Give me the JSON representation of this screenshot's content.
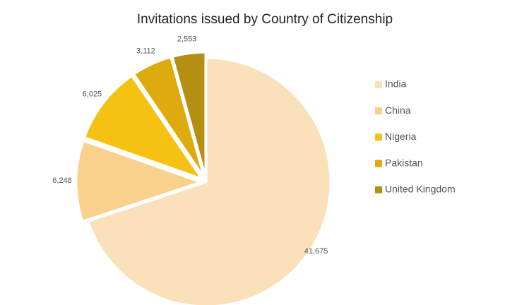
{
  "chart_data": {
    "type": "pie",
    "title": "Invitations issued by Country of Citizenship",
    "categories": [
      "India",
      "China",
      "Nigeria",
      "Pakistan",
      "United Kingdom"
    ],
    "values": [
      41675,
      6248,
      6025,
      3112,
      2553
    ],
    "value_labels": [
      "41,675",
      "6,248",
      "6,025",
      "3,112",
      "2,553"
    ],
    "colors": [
      "#fae1b9",
      "#f9d08c",
      "#f5c213",
      "#deaa0d",
      "#b68e12"
    ],
    "legend": "right"
  }
}
